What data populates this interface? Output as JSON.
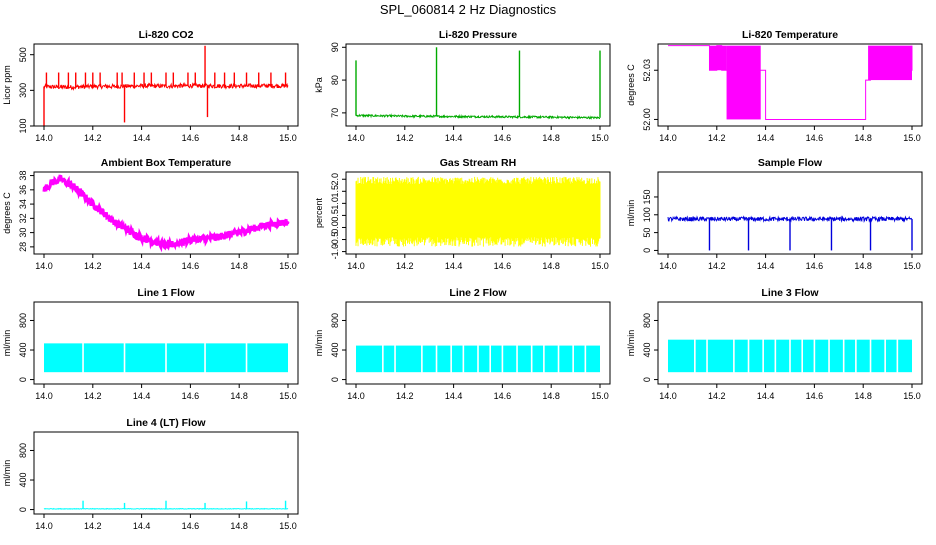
{
  "figure": {
    "title": "SPL_060814  2 Hz Diagnostics"
  },
  "chart_data": [
    {
      "id": "co2",
      "type": "line",
      "title": "Li-820 CO2",
      "ylabel": "Licor ppm",
      "color": "#ff0000",
      "xlim": [
        14.0,
        15.0
      ],
      "ylim": [
        100,
        560
      ],
      "xticks": [
        14.0,
        14.2,
        14.4,
        14.6,
        14.8,
        15.0
      ],
      "xtick_labels": [
        "14.0",
        "14.2",
        "14.4",
        "14.6",
        "14.8",
        "15.0"
      ],
      "yticks": [
        100,
        300,
        500
      ],
      "ytick_labels": [
        "100",
        "300",
        "500"
      ],
      "series": [
        {
          "baseline": [
            [
              14.0,
              320
            ],
            [
              14.1,
              318
            ],
            [
              14.2,
              322
            ],
            [
              14.3,
              322
            ],
            [
              14.4,
              325
            ],
            [
              14.5,
              324
            ],
            [
              14.6,
              326
            ],
            [
              14.7,
              325
            ],
            [
              14.8,
              324
            ],
            [
              14.9,
              326
            ],
            [
              15.0,
              325
            ]
          ],
          "noise": 12,
          "spikes": [
            [
              14.0,
              100
            ],
            [
              14.01,
              400
            ],
            [
              14.06,
              400
            ],
            [
              14.1,
              400
            ],
            [
              14.13,
              400
            ],
            [
              14.17,
              400
            ],
            [
              14.2,
              400
            ],
            [
              14.23,
              400
            ],
            [
              14.3,
              400
            ],
            [
              14.32,
              400
            ],
            [
              14.33,
              120
            ],
            [
              14.37,
              400
            ],
            [
              14.41,
              400
            ],
            [
              14.44,
              400
            ],
            [
              14.5,
              400
            ],
            [
              14.53,
              400
            ],
            [
              14.59,
              400
            ],
            [
              14.62,
              400
            ],
            [
              14.66,
              550
            ],
            [
              14.67,
              150
            ],
            [
              14.7,
              400
            ],
            [
              14.74,
              400
            ],
            [
              14.78,
              400
            ],
            [
              14.83,
              400
            ],
            [
              14.88,
              400
            ],
            [
              14.93,
              400
            ],
            [
              14.99,
              400
            ]
          ]
        }
      ]
    },
    {
      "id": "pressure",
      "type": "line",
      "title": "Li-820 Pressure",
      "ylabel": "kPa",
      "color": "#00aa00",
      "xlim": [
        14.0,
        15.0
      ],
      "ylim": [
        66,
        91
      ],
      "xticks": [
        14.0,
        14.2,
        14.4,
        14.6,
        14.8,
        15.0
      ],
      "xtick_labels": [
        "14.0",
        "14.2",
        "14.4",
        "14.6",
        "14.8",
        "15.0"
      ],
      "yticks": [
        70,
        80,
        90
      ],
      "ytick_labels": [
        "70",
        "80",
        "90"
      ],
      "series": [
        {
          "baseline": [
            [
              14.0,
              69.2
            ],
            [
              14.2,
              69.0
            ],
            [
              14.4,
              68.9
            ],
            [
              14.6,
              68.8
            ],
            [
              14.8,
              68.7
            ],
            [
              15.0,
              68.5
            ]
          ],
          "noise": 0.3,
          "spikes": [
            [
              14.0,
              86
            ],
            [
              14.33,
              90
            ],
            [
              14.67,
              89
            ],
            [
              15.0,
              89
            ]
          ]
        }
      ]
    },
    {
      "id": "temperature",
      "type": "line",
      "title": "Li-820 Temperature",
      "ylabel": "degrees C",
      "color": "#ff00ff",
      "xlim": [
        14.0,
        15.0
      ],
      "ylim": [
        51.996,
        52.046
      ],
      "xticks": [
        14.0,
        14.2,
        14.4,
        14.6,
        14.8,
        15.0
      ],
      "xtick_labels": [
        "14.0",
        "14.2",
        "14.4",
        "14.6",
        "14.8",
        "15.0"
      ],
      "yticks": [
        52.0,
        52.03
      ],
      "ytick_labels": [
        "52.00",
        "52.03"
      ],
      "series": [
        {
          "steps": [
            [
              14.0,
              52.045
            ],
            [
              14.16,
              52.045
            ],
            [
              14.17,
              52.03
            ],
            [
              14.2,
              52.045
            ],
            [
              14.22,
              52.03
            ],
            [
              14.25,
              52.015
            ],
            [
              14.3,
              52.03
            ],
            [
              14.4,
              52.0
            ],
            [
              14.8,
              52.0
            ],
            [
              14.81,
              52.024
            ],
            [
              14.83,
              52.03
            ],
            [
              15.0,
              52.045
            ]
          ],
          "bands": [
            [
              14.17,
              14.24,
              52.03,
              52.045
            ],
            [
              14.24,
              14.38,
              52.0,
              52.045
            ],
            [
              14.82,
              15.0,
              52.024,
              52.045
            ]
          ]
        }
      ]
    },
    {
      "id": "ambient",
      "type": "line",
      "title": "Ambient Box Temperature",
      "ylabel": "degrees C",
      "color": "#ff00ff",
      "xlim": [
        14.0,
        15.0
      ],
      "ylim": [
        27,
        38.5
      ],
      "xticks": [
        14.0,
        14.2,
        14.4,
        14.6,
        14.8,
        15.0
      ],
      "xtick_labels": [
        "14.0",
        "14.2",
        "14.4",
        "14.6",
        "14.8",
        "15.0"
      ],
      "yticks": [
        28,
        30,
        32,
        34,
        36,
        38
      ],
      "ytick_labels": [
        "28",
        "30",
        "32",
        "34",
        "36",
        "38"
      ],
      "series": [
        {
          "points": [
            [
              14.0,
              36.0
            ],
            [
              14.03,
              37.0
            ],
            [
              14.07,
              37.5
            ],
            [
              14.12,
              36.5
            ],
            [
              14.2,
              34.0
            ],
            [
              14.3,
              31.2
            ],
            [
              14.4,
              29.3
            ],
            [
              14.5,
              28.2
            ],
            [
              14.55,
              28.5
            ],
            [
              14.6,
              29.0
            ],
            [
              14.7,
              29.3
            ],
            [
              14.8,
              30.0
            ],
            [
              14.9,
              31.0
            ],
            [
              15.0,
              31.5
            ]
          ],
          "noise": 0.5
        }
      ]
    },
    {
      "id": "rh",
      "type": "area",
      "title": "Gas Stream RH",
      "ylabel": "percent",
      "color": "#ffff00",
      "xlim": [
        14.0,
        15.0
      ],
      "ylim": [
        -1.1,
        2.3
      ],
      "xticks": [
        14.0,
        14.2,
        14.4,
        14.6,
        14.8,
        15.0
      ],
      "xtick_labels": [
        "14.0",
        "14.2",
        "14.4",
        "14.6",
        "14.8",
        "15.0"
      ],
      "yticks": [
        -1.0,
        -0.5,
        0.0,
        0.5,
        1.0,
        1.5,
        2.0
      ],
      "ytick_labels": [
        "-1.0",
        "-0.5",
        "0.0",
        "0.5",
        "1.0",
        "1.5",
        "2.0"
      ],
      "series": [
        {
          "lower": -0.4,
          "upper": 1.8,
          "min": -0.8,
          "max": 2.1
        }
      ]
    },
    {
      "id": "sample_flow",
      "type": "line",
      "title": "Sample Flow",
      "ylabel": "ml/min",
      "color": "#0000dd",
      "xlim": [
        14.0,
        15.0
      ],
      "ylim": [
        -10,
        220
      ],
      "xticks": [
        14.0,
        14.2,
        14.4,
        14.6,
        14.8,
        15.0
      ],
      "xtick_labels": [
        "14.0",
        "14.2",
        "14.4",
        "14.6",
        "14.8",
        "15.0"
      ],
      "yticks": [
        0,
        50,
        100,
        150
      ],
      "ytick_labels": [
        "0",
        "50",
        "100",
        "150"
      ],
      "series": [
        {
          "baseline": [
            [
              14.0,
              88
            ],
            [
              15.0,
              88
            ]
          ],
          "noise": 6,
          "spikes": [
            [
              14.17,
              0
            ],
            [
              14.33,
              0
            ],
            [
              14.5,
              0
            ],
            [
              14.67,
              0
            ],
            [
              14.83,
              0
            ],
            [
              15.0,
              0
            ]
          ]
        }
      ]
    },
    {
      "id": "line1",
      "type": "area",
      "title": "Line 1 Flow",
      "ylabel": "ml/min",
      "color": "#00ffff",
      "xlim": [
        14.0,
        15.0
      ],
      "ylim": [
        -60,
        1050
      ],
      "xticks": [
        14.0,
        14.2,
        14.4,
        14.6,
        14.8,
        15.0
      ],
      "xtick_labels": [
        "14.0",
        "14.2",
        "14.4",
        "14.6",
        "14.8",
        "15.0"
      ],
      "yticks": [
        0,
        400,
        800
      ],
      "ytick_labels": [
        "0",
        "400",
        "800"
      ],
      "series": [
        {
          "lower": 100,
          "upper": 490,
          "gaps": [
            14.16,
            14.33,
            14.5,
            14.66,
            14.83
          ]
        }
      ]
    },
    {
      "id": "line2",
      "type": "area",
      "title": "Line 2 Flow",
      "ylabel": "ml/min",
      "color": "#00ffff",
      "xlim": [
        14.0,
        15.0
      ],
      "ylim": [
        -60,
        1050
      ],
      "xticks": [
        14.0,
        14.2,
        14.4,
        14.6,
        14.8,
        15.0
      ],
      "xtick_labels": [
        "14.0",
        "14.2",
        "14.4",
        "14.6",
        "14.8",
        "15.0"
      ],
      "yticks": [
        0,
        400,
        800
      ],
      "ytick_labels": [
        "0",
        "400",
        "800"
      ],
      "series": [
        {
          "lower": 100,
          "upper": 460,
          "gaps": [
            14.11,
            14.16,
            14.27,
            14.33,
            14.39,
            14.44,
            14.5,
            14.55,
            14.6,
            14.66,
            14.72,
            14.77,
            14.83,
            14.89,
            14.94
          ]
        }
      ]
    },
    {
      "id": "line3",
      "type": "area",
      "title": "Line 3 Flow",
      "ylabel": "ml/min",
      "color": "#00ffff",
      "xlim": [
        14.0,
        15.0
      ],
      "ylim": [
        -60,
        1050
      ],
      "xticks": [
        14.0,
        14.2,
        14.4,
        14.6,
        14.8,
        15.0
      ],
      "xtick_labels": [
        "14.0",
        "14.2",
        "14.4",
        "14.6",
        "14.8",
        "15.0"
      ],
      "yticks": [
        0,
        400,
        800
      ],
      "ytick_labels": [
        "0",
        "400",
        "800"
      ],
      "series": [
        {
          "lower": 100,
          "upper": 540,
          "gaps": [
            14.11,
            14.16,
            14.27,
            14.33,
            14.39,
            14.44,
            14.5,
            14.55,
            14.6,
            14.66,
            14.72,
            14.77,
            14.83,
            14.89,
            14.94
          ]
        }
      ]
    },
    {
      "id": "line4",
      "type": "line",
      "title": "Line 4 (LT) Flow",
      "ylabel": "ml/min",
      "color": "#00ffff",
      "xlim": [
        14.0,
        15.0
      ],
      "ylim": [
        -60,
        1050
      ],
      "xticks": [
        14.0,
        14.2,
        14.4,
        14.6,
        14.8,
        15.0
      ],
      "xtick_labels": [
        "14.0",
        "14.2",
        "14.4",
        "14.6",
        "14.8",
        "15.0"
      ],
      "yticks": [
        0,
        400,
        800
      ],
      "ytick_labels": [
        "0",
        "400",
        "800"
      ],
      "series": [
        {
          "baseline": [
            [
              14.0,
              10
            ],
            [
              15.0,
              10
            ]
          ],
          "noise": 4,
          "spikes": [
            [
              14.16,
              120
            ],
            [
              14.33,
              90
            ],
            [
              14.5,
              120
            ],
            [
              14.66,
              90
            ],
            [
              14.83,
              110
            ],
            [
              14.99,
              120
            ]
          ]
        }
      ]
    }
  ]
}
